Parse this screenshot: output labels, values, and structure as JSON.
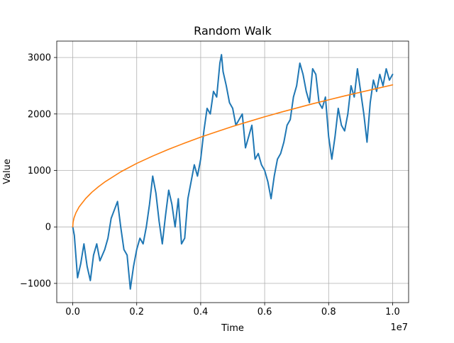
{
  "chart_data": {
    "type": "line",
    "title": "Random Walk",
    "xlabel": "Time",
    "ylabel": "Value",
    "x_offset_label": "1e7",
    "xlim": [
      -0.05,
      1.05
    ],
    "ylim": [
      -1340,
      3290
    ],
    "x_ticks": [
      0.0,
      0.2,
      0.4,
      0.6,
      0.8,
      1.0
    ],
    "x_tick_labels": [
      "0.0",
      "0.2",
      "0.4",
      "0.6",
      "0.8",
      "1.0"
    ],
    "y_ticks": [
      -1000,
      0,
      1000,
      2000,
      3000
    ],
    "y_tick_labels": [
      "−1000",
      "0",
      "1000",
      "2000",
      "3000"
    ],
    "grid": true,
    "colors": {
      "random_walk": "#1f77b4",
      "sqrt_curve": "#ff7f0e"
    },
    "series": [
      {
        "x": [
          0.0,
          0.005,
          0.015,
          0.025,
          0.035,
          0.045,
          0.055,
          0.065,
          0.075,
          0.085,
          0.1,
          0.11,
          0.12,
          0.13,
          0.14,
          0.15,
          0.16,
          0.17,
          0.175,
          0.18,
          0.19,
          0.2,
          0.21,
          0.22,
          0.23,
          0.24,
          0.25,
          0.26,
          0.27,
          0.28,
          0.29,
          0.3,
          0.31,
          0.32,
          0.33,
          0.34,
          0.35,
          0.36,
          0.37,
          0.38,
          0.39,
          0.4,
          0.41,
          0.42,
          0.43,
          0.44,
          0.45,
          0.46,
          0.465,
          0.47,
          0.48,
          0.49,
          0.5,
          0.51,
          0.52,
          0.53,
          0.54,
          0.55,
          0.56,
          0.57,
          0.58,
          0.59,
          0.6,
          0.61,
          0.62,
          0.63,
          0.64,
          0.65,
          0.66,
          0.67,
          0.68,
          0.69,
          0.7,
          0.71,
          0.72,
          0.73,
          0.74,
          0.75,
          0.76,
          0.77,
          0.78,
          0.79,
          0.8,
          0.81,
          0.82,
          0.83,
          0.84,
          0.85,
          0.86,
          0.87,
          0.88,
          0.89,
          0.9,
          0.91,
          0.92,
          0.93,
          0.94,
          0.95,
          0.96,
          0.97,
          0.98,
          0.99,
          1.0
        ],
        "y": [
          0,
          -150,
          -900,
          -650,
          -300,
          -700,
          -950,
          -500,
          -300,
          -600,
          -400,
          -200,
          150,
          300,
          450,
          0,
          -400,
          -500,
          -800,
          -1100,
          -700,
          -400,
          -200,
          -300,
          0,
          400,
          900,
          600,
          100,
          -300,
          200,
          650,
          400,
          0,
          500,
          -300,
          -200,
          500,
          800,
          1100,
          900,
          1200,
          1700,
          2100,
          2000,
          2400,
          2300,
          2900,
          3050,
          2750,
          2500,
          2200,
          2100,
          1800,
          1900,
          2000,
          1400,
          1600,
          1800,
          1200,
          1300,
          1100,
          1000,
          800,
          500,
          900,
          1200,
          1300,
          1500,
          1800,
          1900,
          2300,
          2500,
          2900,
          2700,
          2400,
          2200,
          2800,
          2700,
          2200,
          2100,
          2300,
          1600,
          1200,
          1600,
          2100,
          1800,
          1700,
          2000,
          2500,
          2300,
          2800,
          2400,
          2000,
          1500,
          2200,
          2600,
          2400,
          2700,
          2500,
          2800,
          2600,
          2700
        ]
      },
      {
        "x": [
          0.0,
          0.001,
          0.004,
          0.01,
          0.02,
          0.04,
          0.06,
          0.08,
          0.1,
          0.15,
          0.2,
          0.25,
          0.3,
          0.35,
          0.4,
          0.45,
          0.5,
          0.55,
          0.6,
          0.65,
          0.7,
          0.75,
          0.8,
          0.85,
          0.9,
          0.95,
          1.0
        ],
        "y": [
          0,
          80,
          160,
          250,
          355,
          500,
          615,
          710,
          795,
          975,
          1125,
          1255,
          1375,
          1485,
          1590,
          1685,
          1780,
          1865,
          1950,
          2030,
          2105,
          2180,
          2250,
          2320,
          2385,
          2450,
          2515
        ]
      }
    ]
  }
}
